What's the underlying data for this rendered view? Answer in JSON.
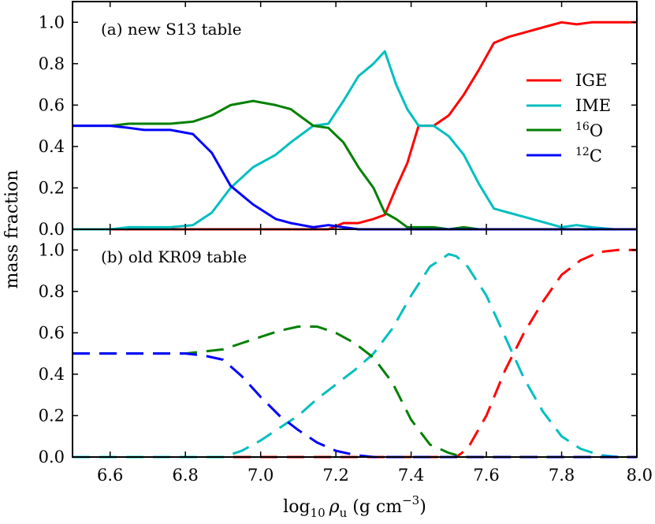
{
  "chart_data": [
    {
      "type": "line",
      "panel_title": "(a) new S13 table",
      "linestyle": "solid",
      "xlim": [
        6.5,
        8.0
      ],
      "ylim": [
        0.0,
        1.1
      ],
      "x": [
        6.5,
        6.6,
        6.65,
        6.69,
        6.72,
        6.76,
        6.82,
        6.87,
        6.92,
        6.98,
        7.04,
        7.08,
        7.14,
        7.18,
        7.22,
        7.26,
        7.3,
        7.33,
        7.36,
        7.39,
        7.42,
        7.46,
        7.5,
        7.54,
        7.58,
        7.62,
        7.66,
        7.7,
        7.76,
        7.8,
        7.84,
        7.88,
        7.94,
        8.0
      ],
      "series": [
        {
          "name": "IGE",
          "color": "#ff0000",
          "values": [
            0,
            0,
            0,
            0,
            0,
            0,
            0,
            0,
            0,
            0,
            0,
            0,
            0,
            0,
            0.03,
            0.03,
            0.05,
            0.07,
            0.2,
            0.32,
            0.5,
            0.5,
            0.55,
            0.65,
            0.77,
            0.9,
            0.93,
            0.95,
            0.98,
            1.0,
            0.99,
            1.0,
            1.0,
            1.0
          ]
        },
        {
          "name": "IME",
          "color": "#00bfbf",
          "values": [
            0,
            0,
            0.01,
            0.01,
            0.01,
            0.01,
            0.02,
            0.08,
            0.2,
            0.3,
            0.36,
            0.42,
            0.5,
            0.51,
            0.62,
            0.74,
            0.8,
            0.86,
            0.7,
            0.58,
            0.5,
            0.5,
            0.45,
            0.36,
            0.22,
            0.1,
            0.08,
            0.06,
            0.03,
            0.01,
            0.02,
            0.01,
            0,
            0
          ]
        },
        {
          "name": "16O",
          "color": "#008000",
          "values": [
            0.5,
            0.5,
            0.51,
            0.51,
            0.51,
            0.51,
            0.52,
            0.55,
            0.6,
            0.62,
            0.6,
            0.58,
            0.5,
            0.49,
            0.42,
            0.3,
            0.2,
            0.08,
            0.05,
            0.01,
            0.01,
            0.01,
            0,
            0.01,
            0,
            0,
            0,
            0,
            0,
            0,
            0,
            0,
            0,
            0
          ]
        },
        {
          "name": "12C",
          "color": "#0000ff",
          "values": [
            0.5,
            0.5,
            0.49,
            0.48,
            0.48,
            0.48,
            0.46,
            0.37,
            0.21,
            0.12,
            0.05,
            0.03,
            0.01,
            0.02,
            0.01,
            0,
            0,
            0,
            0,
            0,
            0,
            0,
            0,
            0,
            0,
            0,
            0,
            0,
            0,
            0,
            0,
            0,
            0,
            0
          ]
        }
      ]
    },
    {
      "type": "line",
      "panel_title": "(b) old KR09 table",
      "linestyle": "dashed",
      "xlim": [
        6.5,
        8.0
      ],
      "ylim": [
        0.0,
        1.1
      ],
      "x": [
        6.5,
        6.6,
        6.7,
        6.8,
        6.85,
        6.9,
        6.95,
        7.0,
        7.05,
        7.1,
        7.15,
        7.2,
        7.25,
        7.3,
        7.35,
        7.4,
        7.45,
        7.5,
        7.52,
        7.55,
        7.6,
        7.65,
        7.7,
        7.75,
        7.8,
        7.85,
        7.9,
        7.95,
        8.0
      ],
      "series": [
        {
          "name": "IGE",
          "color": "#ff0000",
          "values": [
            0,
            0,
            0,
            0,
            0,
            0,
            0,
            0,
            0,
            0,
            0,
            0,
            0,
            0,
            0,
            0,
            0,
            0,
            0,
            0.04,
            0.2,
            0.42,
            0.6,
            0.75,
            0.88,
            0.95,
            0.99,
            1.0,
            1.0
          ]
        },
        {
          "name": "IME",
          "color": "#00bfbf",
          "values": [
            0,
            0,
            0,
            0,
            0,
            0,
            0.03,
            0.08,
            0.14,
            0.2,
            0.28,
            0.35,
            0.42,
            0.5,
            0.62,
            0.78,
            0.92,
            0.98,
            0.97,
            0.92,
            0.78,
            0.58,
            0.38,
            0.22,
            0.1,
            0.04,
            0.01,
            0,
            0
          ]
        },
        {
          "name": "16O",
          "color": "#008000",
          "values": [
            0.5,
            0.5,
            0.5,
            0.5,
            0.51,
            0.52,
            0.55,
            0.58,
            0.61,
            0.63,
            0.63,
            0.6,
            0.55,
            0.48,
            0.36,
            0.18,
            0.06,
            0.02,
            0.01,
            0,
            0,
            0,
            0,
            0,
            0,
            0,
            0,
            0,
            0
          ]
        },
        {
          "name": "12C",
          "color": "#0000ff",
          "values": [
            0.5,
            0.5,
            0.5,
            0.5,
            0.49,
            0.47,
            0.39,
            0.29,
            0.2,
            0.13,
            0.07,
            0.03,
            0.01,
            0,
            0,
            0,
            0,
            0,
            0,
            0,
            0,
            0,
            0,
            0,
            0,
            0,
            0,
            0,
            0
          ]
        }
      ]
    }
  ],
  "axes": {
    "ylabel": "mass fraction",
    "xlabel_prefix": "log",
    "xlabel_sub": "10",
    "xlabel_rho": "ρ",
    "xlabel_rho_sub": "u",
    "xlabel_units": "(g cm",
    "xlabel_exp": "−3",
    "xlabel_close": ")",
    "xticks": [
      "6.6",
      "6.8",
      "7.0",
      "7.2",
      "7.4",
      "7.6",
      "7.8",
      "8.0"
    ],
    "yticks": [
      "0.0",
      "0.2",
      "0.4",
      "0.6",
      "0.8",
      "1.0"
    ]
  },
  "legend": [
    {
      "label": "IGE",
      "color": "#ff0000"
    },
    {
      "label": "IME",
      "color": "#00bfbf"
    },
    {
      "sup": "16",
      "label": "O",
      "color": "#008000"
    },
    {
      "sup": "12",
      "label": "C",
      "color": "#0000ff"
    }
  ]
}
